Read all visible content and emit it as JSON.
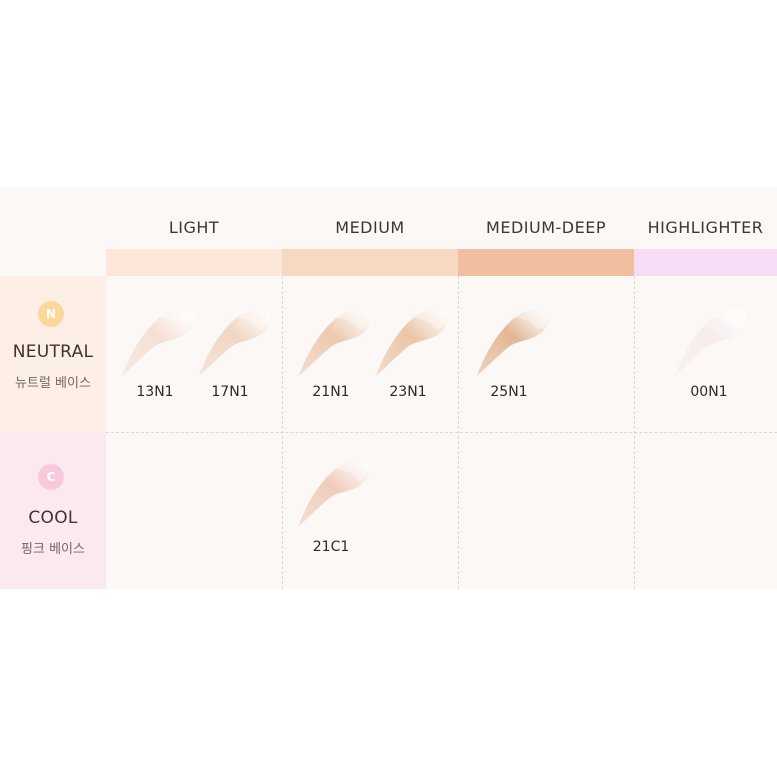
{
  "columns": [
    {
      "label": "LIGHT",
      "color": "#fde6da"
    },
    {
      "label": "MEDIUM",
      "color": "#f7d8c3"
    },
    {
      "label": "MEDIUM-DEEP",
      "color": "#efbfa0"
    },
    {
      "label": "HIGHLIGHTER",
      "color": "#f6dcf4"
    }
  ],
  "rows": [
    {
      "badge": "N",
      "title": "NEUTRAL",
      "subtitle": "뉴트럴 베이스",
      "badge_color": "#fbd79a",
      "bg": "#fdeee6"
    },
    {
      "badge": "C",
      "title": "COOL",
      "subtitle": "핑크 베이스",
      "badge_color": "#f8c9dc",
      "bg": "#fce8ef"
    }
  ],
  "shades": [
    {
      "label": "13N1",
      "color": "#f5e0d5"
    },
    {
      "label": "17N1",
      "color": "#f1d5c2"
    },
    {
      "label": "21N1",
      "color": "#eec9ad"
    },
    {
      "label": "23N1",
      "color": "#ebc5a8"
    },
    {
      "label": "25N1",
      "color": "#e3b794"
    },
    {
      "label": "00N1",
      "color": "#f8ecec"
    },
    {
      "label": "21C1",
      "color": "#f1cbbb"
    }
  ]
}
